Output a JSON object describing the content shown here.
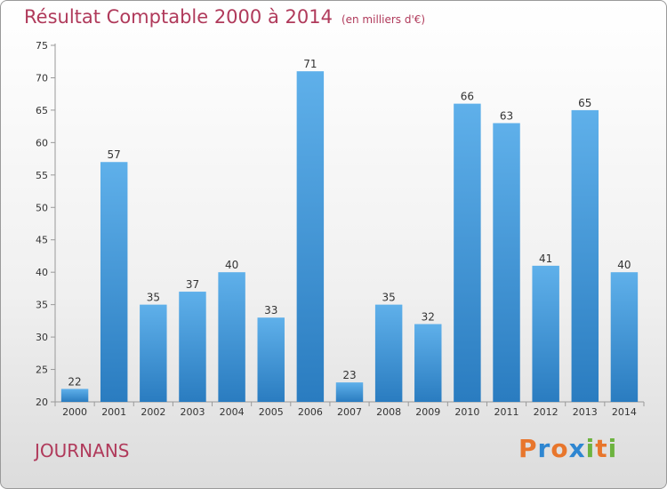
{
  "header": {
    "title": "Résultat Comptable 2000 à 2014",
    "subtitle": "(en milliers d'€)"
  },
  "footer": {
    "location": "JOURNANS",
    "logo": [
      "P",
      "r",
      "o",
      "x",
      "i",
      "t",
      "i"
    ]
  },
  "colors": {
    "title": "#b03a5b",
    "bar_top": "#5fb0ea",
    "bar_bottom": "#2a7cc0",
    "logo": [
      "#e8762c",
      "#2e86d1",
      "#e8762c",
      "#2e86d1",
      "#6db33f",
      "#e8762c",
      "#6db33f"
    ]
  },
  "chart_data": {
    "type": "bar",
    "title": "Résultat Comptable 2000 à 2014",
    "subtitle": "(en milliers d'€)",
    "xlabel": "",
    "ylabel": "",
    "categories": [
      "2000",
      "2001",
      "2002",
      "2003",
      "2004",
      "2005",
      "2006",
      "2007",
      "2008",
      "2009",
      "2010",
      "2011",
      "2012",
      "2013",
      "2014"
    ],
    "values": [
      22,
      57,
      35,
      37,
      40,
      33,
      71,
      23,
      35,
      32,
      66,
      63,
      41,
      65,
      40
    ],
    "ylim": [
      20,
      75
    ],
    "yticks": [
      20,
      25,
      30,
      35,
      40,
      45,
      50,
      55,
      60,
      65,
      70,
      75
    ],
    "grid": false,
    "data_labels": true
  }
}
